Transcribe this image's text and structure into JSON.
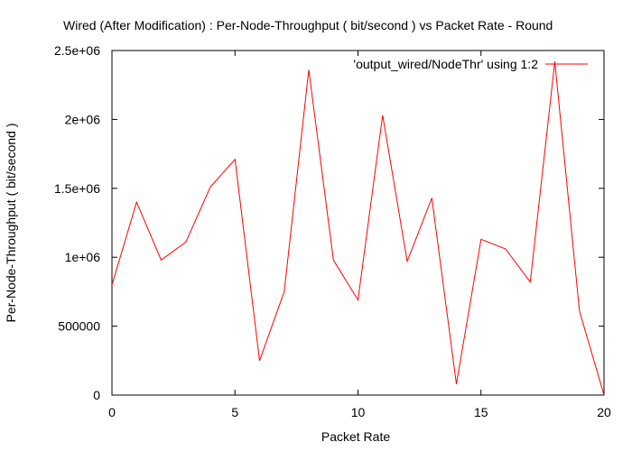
{
  "chart_data": {
    "type": "line",
    "title": "Wired (After Modification) : Per-Node-Throughput ( bit/second ) vs Packet Rate - Round",
    "xlabel": "Packet Rate",
    "ylabel": "Per-Node-Throughput ( bit/second )",
    "xlim": [
      0,
      20
    ],
    "ylim": [
      0,
      2500000
    ],
    "xticks": [
      0,
      5,
      10,
      15,
      20
    ],
    "xtick_labels": [
      "0",
      "5",
      "10",
      "15",
      "20"
    ],
    "yticks": [
      0,
      500000,
      1000000,
      1500000,
      2000000,
      2500000
    ],
    "ytick_labels": [
      "0",
      "500000",
      "1e+06",
      "1.5e+06",
      "2e+06",
      "2.5e+06"
    ],
    "grid": false,
    "legend_position": "top-right",
    "series": [
      {
        "name": "'output_wired/NodeThr' using 1:2",
        "color": "#ff0000",
        "x": [
          0,
          1,
          2,
          3,
          4,
          5,
          6,
          7,
          8,
          9,
          10,
          11,
          12,
          13,
          14,
          15,
          16,
          17,
          18,
          19,
          20
        ],
        "y": [
          800000,
          1400000,
          980000,
          1110000,
          1510000,
          1710000,
          250000,
          750000,
          2360000,
          980000,
          690000,
          2030000,
          970000,
          1430000,
          80000,
          1130000,
          1060000,
          820000,
          2420000,
          610000,
          0
        ]
      }
    ]
  }
}
